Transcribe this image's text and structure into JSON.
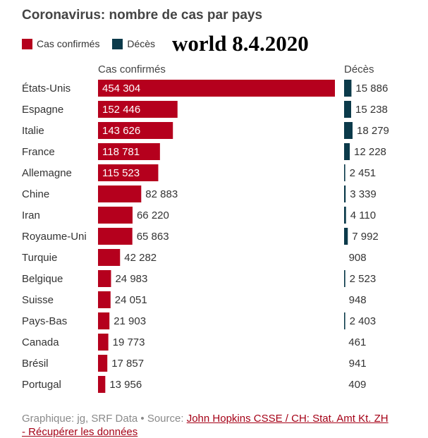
{
  "title": "Coronavirus: nombre de cas par pays",
  "overlay_text": "world 8.4.2020",
  "legend": [
    {
      "label": "Cas confirmés",
      "color": "#b5001d"
    },
    {
      "label": "Décès",
      "color": "#0b3a4a"
    }
  ],
  "footer": {
    "prefix": "Graphique: jg, SRF Data • Source: ",
    "link_text": "John Hopkins CSSE / CH: Stat. Amt Kt. ZH",
    "second_line": "- Récupérer les données"
  },
  "chart_data": {
    "type": "bar",
    "categories": [
      "États-Unis",
      "Espagne",
      "Italie",
      "France",
      "Allemagne",
      "Chine",
      "Iran",
      "Royaume-Uni",
      "Turquie",
      "Belgique",
      "Suisse",
      "Pays-Bas",
      "Canada",
      "Brésil",
      "Portugal"
    ],
    "series": [
      {
        "name": "Cas confirmés",
        "color": "#b5001d",
        "values": [
          454304,
          152446,
          143626,
          118781,
          115523,
          82883,
          66220,
          65863,
          42282,
          24983,
          24051,
          21903,
          19773,
          17857,
          13956
        ],
        "labels": [
          "454 304",
          "152 446",
          "143 626",
          "118 781",
          "115 523",
          "82 883",
          "66 220",
          "65 863",
          "42 282",
          "24 983",
          "24 051",
          "21 903",
          "19 773",
          "17 857",
          "13 956"
        ]
      },
      {
        "name": "Décès",
        "color": "#0b3a4a",
        "values": [
          15886,
          15238,
          18279,
          12228,
          2451,
          3339,
          4110,
          7992,
          908,
          2523,
          948,
          2403,
          461,
          941,
          409
        ],
        "labels": [
          "15 886",
          "15 238",
          "18 279",
          "12 228",
          "2 451",
          "3 339",
          "4 110",
          "7 992",
          "908",
          "2 523",
          "948",
          "2 403",
          "461",
          "941",
          "409"
        ]
      }
    ],
    "column_headers": [
      "Cas confirmés",
      "Décès"
    ]
  }
}
